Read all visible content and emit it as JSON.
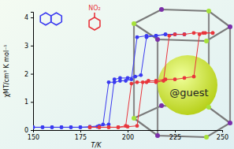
{
  "chart_data": {
    "type": "line",
    "x_label": "T/K",
    "y_label": "χMT/cm³ K mol⁻¹",
    "annotations": [
      "NO₂",
      "@guest"
    ],
    "marker": "circle",
    "xlim": [
      150,
      250
    ],
    "ylim": [
      0,
      4.2
    ],
    "xticks": [
      150,
      175,
      200,
      225,
      250
    ],
    "yticks": [
      0,
      1,
      2,
      3,
      4
    ],
    "series": [
      {
        "color": "#3a3af0",
        "x": [
          150,
          155,
          160,
          165,
          170,
          175,
          180,
          185,
          190,
          193,
          196,
          200,
          204,
          207,
          210,
          215,
          220,
          225,
          230
        ],
        "values": [
          0.1,
          0.1,
          0.1,
          0.1,
          0.1,
          0.1,
          0.12,
          0.15,
          0.2,
          1.8,
          1.85,
          1.85,
          1.9,
          1.95,
          3.3,
          3.35,
          3.4,
          3.4,
          3.4
        ]
      },
      {
        "color": "#3a3af0",
        "x": [
          230,
          225,
          220,
          215,
          210,
          205,
          202,
          199,
          196,
          193,
          190,
          187,
          184,
          180,
          175,
          170,
          165,
          160,
          155,
          150
        ],
        "values": [
          3.4,
          3.4,
          3.4,
          3.35,
          3.35,
          3.3,
          1.8,
          1.75,
          1.75,
          1.7,
          1.7,
          0.2,
          0.12,
          0.1,
          0.1,
          0.1,
          0.1,
          0.1,
          0.1,
          0.1
        ]
      },
      {
        "color": "#e8363c",
        "x": [
          180,
          185,
          190,
          195,
          200,
          205,
          208,
          211,
          215,
          220,
          225,
          230,
          235,
          238,
          241,
          245
        ],
        "values": [
          0.1,
          0.1,
          0.1,
          0.1,
          0.12,
          0.15,
          1.7,
          1.75,
          1.75,
          1.8,
          1.8,
          1.85,
          1.9,
          3.4,
          3.45,
          3.45
        ]
      },
      {
        "color": "#e8363c",
        "x": [
          245,
          240,
          235,
          230,
          225,
          222,
          219,
          215,
          210,
          205,
          202,
          199,
          195,
          190,
          185,
          180
        ],
        "values": [
          3.45,
          3.45,
          3.45,
          3.4,
          3.4,
          3.35,
          1.75,
          1.7,
          1.7,
          1.7,
          1.65,
          0.15,
          0.1,
          0.1,
          0.1,
          0.1
        ]
      }
    ]
  }
}
